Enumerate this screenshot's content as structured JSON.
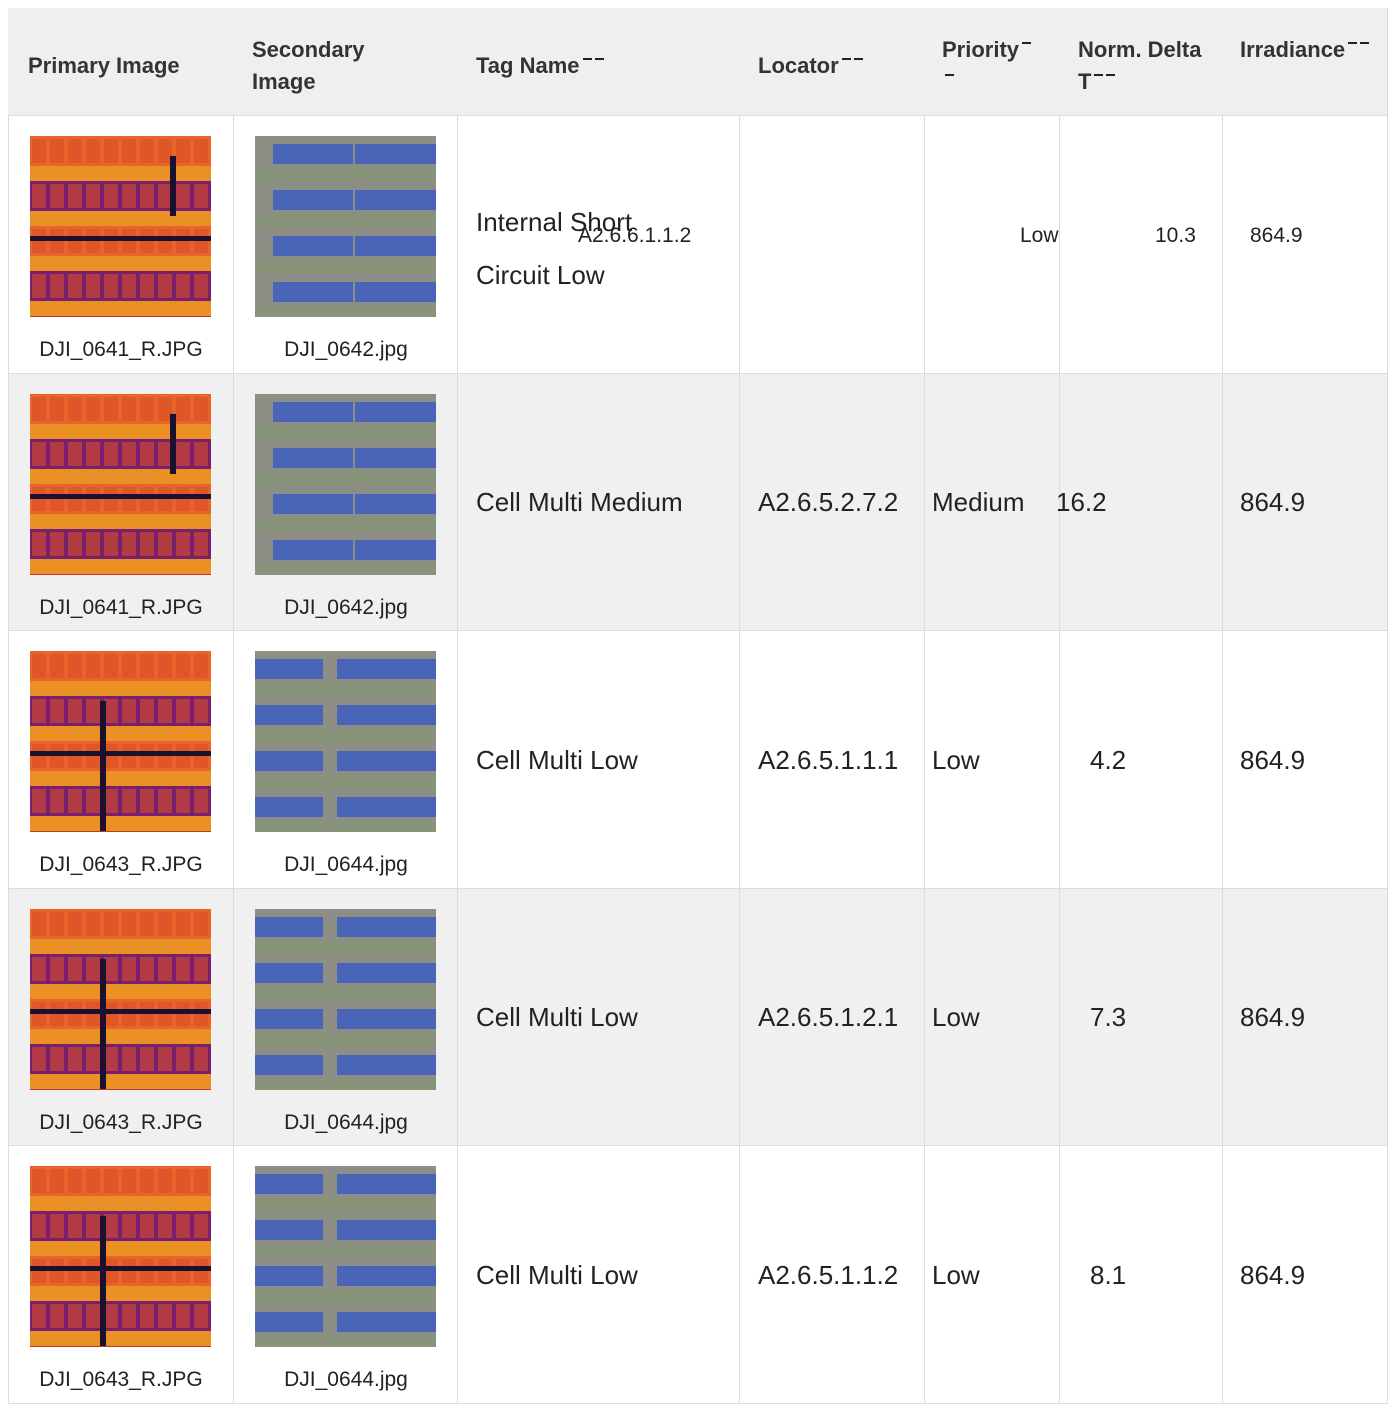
{
  "table": {
    "headers": [
      "Primary Image",
      "Secondary Image",
      "Tag Name",
      "Locator",
      "Priority",
      "Norm. Delta T",
      "Irradiance"
    ],
    "rows": [
      [
        "DJI_0641_R.JPG",
        "DJI_0642.jpg",
        "Internal Short Circuit Low",
        "A2.6.6.1.1.2",
        "Low",
        "10.3",
        "864.9"
      ],
      [
        "DJI_0641_R.JPG",
        "DJI_0642.jpg",
        "Cell Multi Medium",
        "A2.6.5.2.7.2",
        "Medium",
        "16.2",
        "864.9"
      ],
      [
        "DJI_0643_R.JPG",
        "DJI_0644.jpg",
        "Cell Multi Low",
        "A2.6.5.1.1.1",
        "Low",
        "4.2",
        "864.9"
      ],
      [
        "DJI_0643_R.JPG",
        "DJI_0644.jpg",
        "Cell Multi Low",
        "A2.6.5.1.2.1",
        "Low",
        "7.3",
        "864.9"
      ],
      [
        "DJI_0643_R.JPG",
        "DJI_0644.jpg",
        "Cell Multi Low",
        "A2.6.5.1.1.2",
        "Low",
        "8.1",
        "864.9"
      ]
    ]
  }
}
